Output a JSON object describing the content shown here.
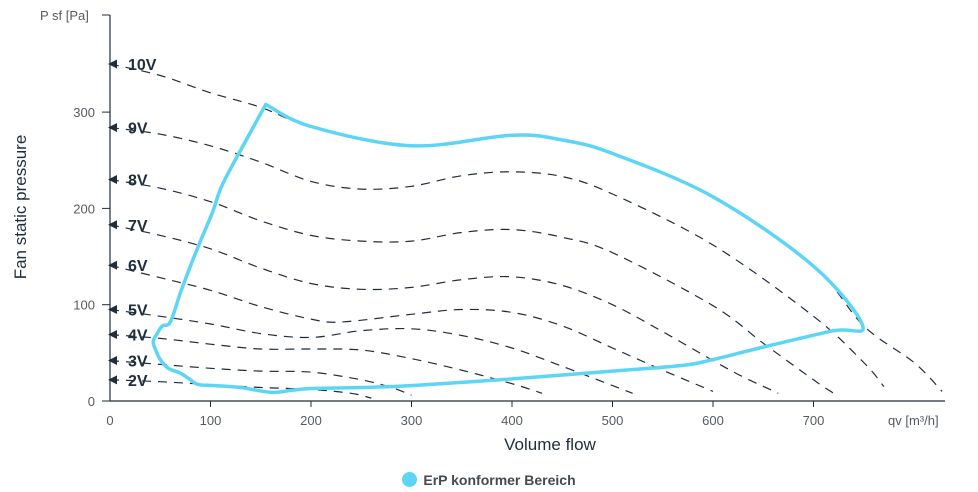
{
  "chart_data": {
    "type": "line",
    "title": "",
    "xlabel": "Volume flow",
    "ylabel": "Fan static pressure",
    "x_unit": "qv [m³/h]",
    "y_unit": "P sf [Pa]",
    "xlim": [
      0,
      830
    ],
    "ylim": [
      0,
      400
    ],
    "xticks": [
      0,
      100,
      200,
      300,
      400,
      500,
      600,
      700
    ],
    "yticks": [
      0,
      100,
      200,
      300
    ],
    "grid": false,
    "series": [
      {
        "name": "10V",
        "points": [
          [
            0,
            350
          ],
          [
            50,
            338
          ],
          [
            100,
            320
          ],
          [
            150,
            305
          ],
          [
            200,
            285
          ],
          [
            300,
            265
          ],
          [
            400,
            276
          ],
          [
            450,
            271
          ],
          [
            500,
            257
          ],
          [
            600,
            212
          ],
          [
            700,
            140
          ],
          [
            750,
            78
          ],
          [
            800,
            40
          ],
          [
            828,
            10
          ]
        ]
      },
      {
        "name": "9V",
        "points": [
          [
            0,
            284
          ],
          [
            50,
            277
          ],
          [
            100,
            265
          ],
          [
            150,
            248
          ],
          [
            200,
            228
          ],
          [
            250,
            220
          ],
          [
            300,
            223
          ],
          [
            350,
            234
          ],
          [
            400,
            238
          ],
          [
            450,
            233
          ],
          [
            500,
            215
          ],
          [
            600,
            162
          ],
          [
            700,
            88
          ],
          [
            750,
            40
          ],
          [
            770,
            15
          ]
        ]
      },
      {
        "name": "8V",
        "points": [
          [
            0,
            230
          ],
          [
            50,
            221
          ],
          [
            100,
            207
          ],
          [
            150,
            187
          ],
          [
            200,
            172
          ],
          [
            250,
            166
          ],
          [
            300,
            166
          ],
          [
            350,
            175
          ],
          [
            400,
            178
          ],
          [
            450,
            170
          ],
          [
            500,
            154
          ],
          [
            600,
            99
          ],
          [
            650,
            60
          ],
          [
            700,
            22
          ],
          [
            720,
            8
          ]
        ]
      },
      {
        "name": "7V",
        "points": [
          [
            0,
            183
          ],
          [
            50,
            172
          ],
          [
            100,
            158
          ],
          [
            150,
            138
          ],
          [
            200,
            122
          ],
          [
            250,
            116
          ],
          [
            300,
            118
          ],
          [
            350,
            126
          ],
          [
            400,
            129
          ],
          [
            450,
            120
          ],
          [
            500,
            100
          ],
          [
            550,
            72
          ],
          [
            600,
            42
          ],
          [
            630,
            25
          ],
          [
            665,
            8
          ]
        ]
      },
      {
        "name": "6V",
        "points": [
          [
            0,
            141
          ],
          [
            50,
            128
          ],
          [
            100,
            115
          ],
          [
            150,
            98
          ],
          [
            200,
            85
          ],
          [
            230,
            82
          ],
          [
            300,
            90
          ],
          [
            350,
            95
          ],
          [
            400,
            92
          ],
          [
            450,
            78
          ],
          [
            500,
            55
          ],
          [
            550,
            32
          ],
          [
            600,
            10
          ]
        ]
      },
      {
        "name": "5V",
        "points": [
          [
            0,
            95
          ],
          [
            50,
            88
          ],
          [
            100,
            80
          ],
          [
            150,
            70
          ],
          [
            200,
            66
          ],
          [
            250,
            73
          ],
          [
            300,
            75
          ],
          [
            350,
            68
          ],
          [
            400,
            55
          ],
          [
            450,
            36
          ],
          [
            500,
            16
          ],
          [
            520,
            8
          ]
        ]
      },
      {
        "name": "4V",
        "points": [
          [
            0,
            69
          ],
          [
            50,
            65
          ],
          [
            100,
            59
          ],
          [
            150,
            54
          ],
          [
            200,
            54
          ],
          [
            250,
            53
          ],
          [
            300,
            44
          ],
          [
            350,
            32
          ],
          [
            400,
            18
          ],
          [
            430,
            8
          ]
        ]
      },
      {
        "name": "3V",
        "points": [
          [
            0,
            42
          ],
          [
            50,
            38
          ],
          [
            100,
            34
          ],
          [
            150,
            31
          ],
          [
            200,
            30
          ],
          [
            250,
            22
          ],
          [
            280,
            14
          ],
          [
            300,
            6
          ]
        ]
      },
      {
        "name": "2V",
        "points": [
          [
            0,
            22
          ],
          [
            50,
            20
          ],
          [
            100,
            17
          ],
          [
            150,
            14
          ],
          [
            200,
            12
          ],
          [
            240,
            8
          ],
          [
            260,
            3
          ]
        ]
      }
    ],
    "erp_region": {
      "name": "ErP konformer Bereich",
      "color": "#5dd5f5",
      "points": [
        [
          155,
          308
        ],
        [
          200,
          285
        ],
        [
          300,
          265
        ],
        [
          400,
          276
        ],
        [
          450,
          271
        ],
        [
          500,
          257
        ],
        [
          600,
          212
        ],
        [
          700,
          140
        ],
        [
          749,
          78
        ],
        [
          720,
          73
        ],
        [
          650,
          56
        ],
        [
          600,
          43
        ],
        [
          570,
          37
        ],
        [
          500,
          31
        ],
        [
          400,
          23
        ],
        [
          300,
          16
        ],
        [
          250,
          14
        ],
        [
          200,
          13
        ],
        [
          180,
          11
        ],
        [
          160,
          9
        ],
        [
          130,
          14
        ],
        [
          105,
          16
        ],
        [
          88,
          17
        ],
        [
          80,
          22
        ],
        [
          70,
          29
        ],
        [
          58,
          34
        ],
        [
          50,
          43
        ],
        [
          45,
          54
        ],
        [
          43,
          62
        ],
        [
          47,
          70
        ],
        [
          52,
          78
        ],
        [
          60,
          82
        ],
        [
          70,
          112
        ],
        [
          80,
          140
        ],
        [
          90,
          166
        ],
        [
          102,
          196
        ],
        [
          112,
          225
        ],
        [
          135,
          270
        ],
        [
          155,
          308
        ]
      ]
    }
  },
  "legend": {
    "label": "ErP konformer Bereich",
    "color": "#5dd5f5"
  }
}
